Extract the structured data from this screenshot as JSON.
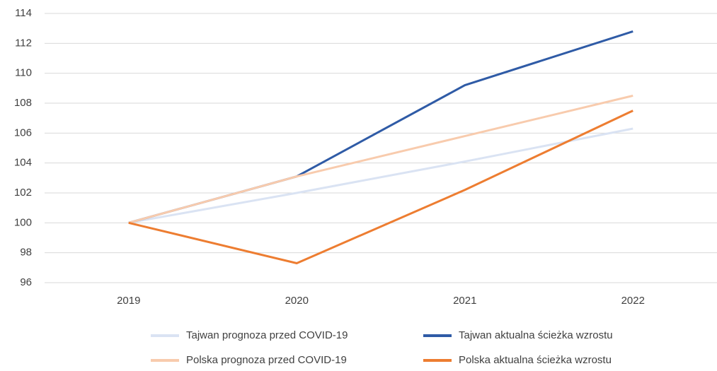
{
  "chart_data": {
    "type": "line",
    "categories": [
      "2019",
      "2020",
      "2021",
      "2022"
    ],
    "series": [
      {
        "name": "Tajwan prognoza przed COVID-19",
        "color": "#dae3f3",
        "values": [
          100,
          102,
          104.1,
          106.3
        ]
      },
      {
        "name": "Tajwan aktualna ścieżka wzrostu",
        "color": "#2f5ba6",
        "values": [
          100,
          103.1,
          109.2,
          112.8
        ]
      },
      {
        "name": "Polska prognoza przed COVID-19",
        "color": "#f8cbad",
        "values": [
          100,
          103.1,
          105.8,
          108.5
        ]
      },
      {
        "name": "Polska aktualna ścieżka wzrostu",
        "color": "#ed7d31",
        "values": [
          100,
          97.3,
          102.2,
          107.5
        ]
      }
    ],
    "ylim": [
      96,
      114
    ],
    "yticks": [
      96,
      98,
      100,
      102,
      104,
      106,
      108,
      110,
      112,
      114
    ],
    "grid": true
  }
}
